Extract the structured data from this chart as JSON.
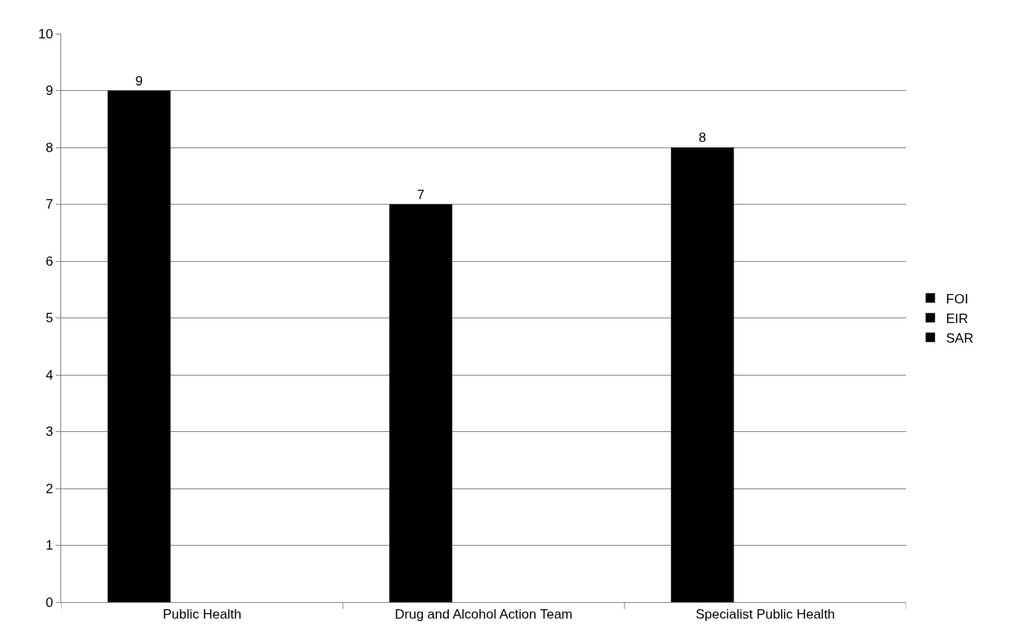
{
  "chart_data": {
    "type": "bar",
    "categories": [
      "Public Health",
      "Drug and Alcohol Action Team",
      "Specialist Public Health"
    ],
    "series": [
      {
        "name": "FOI",
        "color": "#000000",
        "values": [
          9,
          7,
          8
        ]
      },
      {
        "name": "EIR",
        "color": "#000000",
        "values": [
          null,
          null,
          null
        ]
      },
      {
        "name": "SAR",
        "color": "#000000",
        "values": [
          null,
          null,
          null
        ]
      }
    ],
    "ylim": [
      0,
      10
    ],
    "yticks": [
      0,
      1,
      2,
      3,
      4,
      5,
      6,
      7,
      8,
      9,
      10
    ],
    "grid": "y",
    "legend": "right",
    "data_labels": true
  }
}
